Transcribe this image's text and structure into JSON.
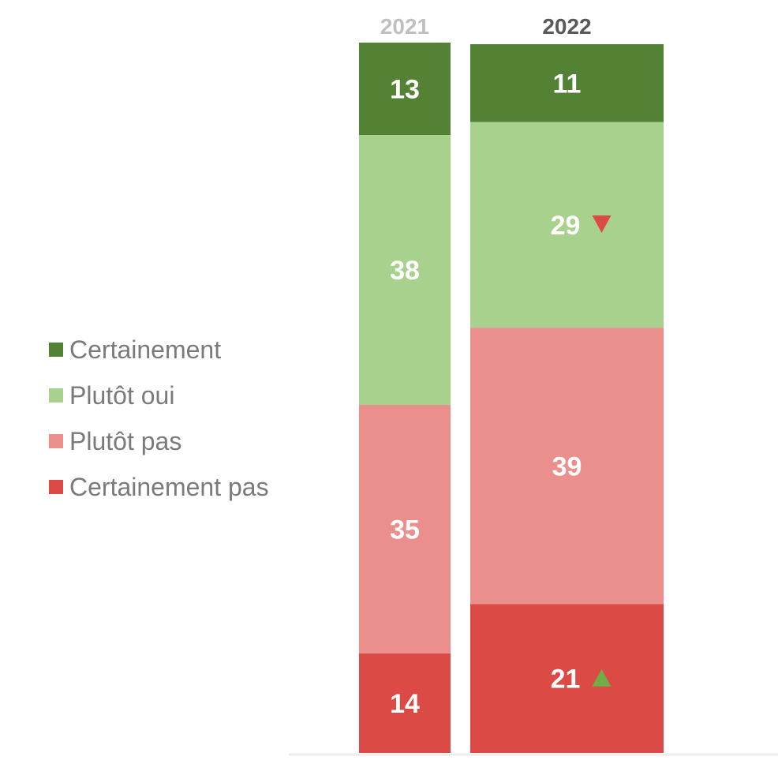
{
  "chart_data": {
    "type": "bar",
    "stacked": true,
    "categories": [
      "2021",
      "2022"
    ],
    "series": [
      {
        "name": "Certainement",
        "color": "#548235",
        "values": [
          13,
          11
        ]
      },
      {
        "name": "Plutôt oui",
        "color": "#a9d18e",
        "values": [
          38,
          29
        ]
      },
      {
        "name": "Plutôt pas",
        "color": "#ea8f8c",
        "values": [
          35,
          39
        ]
      },
      {
        "name": "Certainement pas",
        "color": "#dc4a45",
        "values": [
          14,
          21
        ]
      }
    ],
    "category_label_colors": [
      "#c0c0c0",
      "#595959"
    ],
    "annotations": [
      {
        "category": "2022",
        "series": "Plutôt oui",
        "marker": "down-triangle",
        "color": "#dc4a45"
      },
      {
        "category": "2022",
        "series": "Certainement pas",
        "marker": "up-triangle",
        "color": "#70ad47"
      }
    ],
    "legend_position": "left",
    "ylim": [
      0,
      100
    ],
    "grid": false
  }
}
